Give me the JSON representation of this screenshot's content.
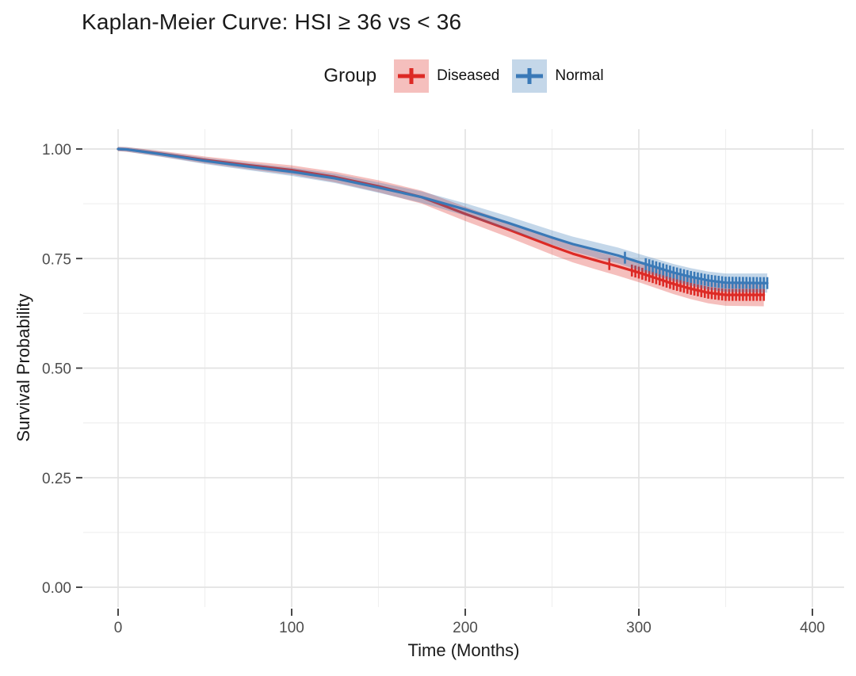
{
  "title": "Kaplan-Meier Curve: HSI ≥ 36 vs < 36",
  "legend": {
    "title": "Group",
    "items": [
      {
        "label": "Diseased"
      },
      {
        "label": "Normal"
      }
    ]
  },
  "axes": {
    "x_title": "Time (Months)",
    "y_title": "Survival Probability",
    "x_tick_labels": [
      "0",
      "100",
      "200",
      "300",
      "400"
    ],
    "y_tick_labels": [
      "0.00",
      "0.25",
      "0.50",
      "0.75",
      "1.00"
    ]
  },
  "chart_data": {
    "type": "line",
    "subtype": "kaplan-meier-survival",
    "title": "Kaplan-Meier Curve: HSI ≥ 36 vs < 36",
    "xlabel": "Time (Months)",
    "ylabel": "Survival Probability",
    "xlim": [
      0,
      400
    ],
    "ylim": [
      0,
      1
    ],
    "x_major_ticks": [
      0,
      100,
      200,
      300,
      400
    ],
    "x_minor_ticks": [
      50,
      150,
      250,
      350
    ],
    "y_major_ticks": [
      0,
      0.25,
      0.5,
      0.75,
      1.0
    ],
    "y_minor_ticks": [
      0.125,
      0.375,
      0.625,
      0.875
    ],
    "grid": true,
    "legend_position": "top",
    "legend_title": "Group",
    "colors": {
      "major_grid": "#e3e3e3",
      "minor_grid": "#f0f0f0",
      "tick": "#333333",
      "tick_label": "#4d4d4d"
    },
    "series": [
      {
        "name": "Diseased",
        "color": "#dd2a25",
        "ci_opacity": 0.3,
        "ci_halfwidth": [
          0.005,
          0.026
        ],
        "points": [
          [
            0,
            1.0
          ],
          [
            5,
            0.999
          ],
          [
            25,
            0.989
          ],
          [
            50,
            0.975
          ],
          [
            75,
            0.963
          ],
          [
            100,
            0.952
          ],
          [
            125,
            0.936
          ],
          [
            150,
            0.915
          ],
          [
            175,
            0.89
          ],
          [
            200,
            0.852
          ],
          [
            225,
            0.816
          ],
          [
            250,
            0.778
          ],
          [
            262,
            0.761
          ],
          [
            275,
            0.746
          ],
          [
            288,
            0.732
          ],
          [
            300,
            0.718
          ],
          [
            310,
            0.705
          ],
          [
            320,
            0.692
          ],
          [
            330,
            0.681
          ],
          [
            340,
            0.672
          ],
          [
            350,
            0.667
          ],
          [
            372,
            0.667
          ]
        ],
        "censor_times": [
          283,
          296,
          298,
          300,
          302,
          304,
          306,
          308,
          310,
          312,
          314,
          316,
          318,
          320,
          322,
          324,
          326,
          328,
          330,
          332,
          334,
          336,
          338,
          340,
          342,
          344,
          346,
          348,
          350,
          352,
          354,
          356,
          358,
          360,
          362,
          364,
          366,
          368,
          370,
          372
        ]
      },
      {
        "name": "Normal",
        "color": "#3a79b7",
        "ci_opacity": 0.3,
        "ci_halfwidth": [
          0.005,
          0.022
        ],
        "points": [
          [
            0,
            1.0
          ],
          [
            5,
            0.999
          ],
          [
            25,
            0.988
          ],
          [
            50,
            0.973
          ],
          [
            75,
            0.96
          ],
          [
            100,
            0.948
          ],
          [
            125,
            0.933
          ],
          [
            150,
            0.912
          ],
          [
            175,
            0.89
          ],
          [
            200,
            0.862
          ],
          [
            225,
            0.831
          ],
          [
            250,
            0.798
          ],
          [
            262,
            0.783
          ],
          [
            275,
            0.77
          ],
          [
            288,
            0.757
          ],
          [
            300,
            0.742
          ],
          [
            310,
            0.73
          ],
          [
            320,
            0.718
          ],
          [
            330,
            0.708
          ],
          [
            340,
            0.7
          ],
          [
            350,
            0.695
          ],
          [
            374,
            0.694
          ]
        ],
        "censor_times": [
          292,
          304,
          306,
          308,
          310,
          312,
          314,
          316,
          318,
          320,
          322,
          324,
          326,
          328,
          330,
          332,
          334,
          336,
          338,
          340,
          342,
          344,
          346,
          348,
          350,
          352,
          354,
          356,
          358,
          360,
          362,
          364,
          366,
          368,
          370,
          372,
          374
        ]
      }
    ]
  }
}
